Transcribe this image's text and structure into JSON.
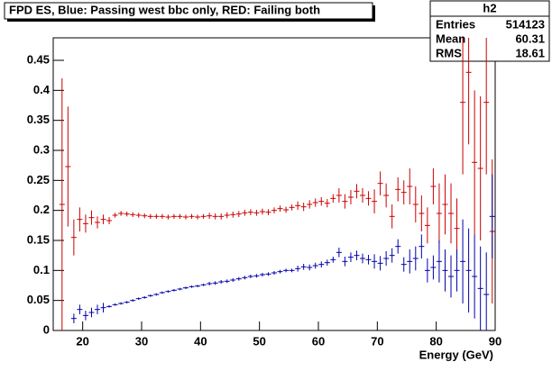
{
  "chart_data": {
    "type": "errorbar",
    "title": "FPD ES, Blue: Passing west bbc only, RED: Failing both",
    "x_label": "Energy (GeV)",
    "stats": {
      "name": "h2",
      "rows": [
        [
          "Entries",
          "514123"
        ],
        [
          "Mean",
          "60.31"
        ],
        [
          "RMS",
          "18.61"
        ]
      ]
    },
    "xlim": [
      15,
      90
    ],
    "xticks": [
      20,
      30,
      40,
      50,
      60,
      70,
      80,
      90
    ],
    "ylim": [
      0,
      0.4875
    ],
    "yticks": [
      0,
      0.05,
      0.1,
      0.15,
      0.2,
      0.25,
      0.3,
      0.35,
      0.4,
      0.45
    ],
    "series": [
      {
        "color": "#cc0000",
        "x": [
          16.5,
          17.5,
          18.5,
          19.5,
          20.5,
          21.5,
          22.5,
          23.5,
          24.5,
          25.5,
          26.5,
          27.5,
          28.5,
          29.5,
          30.5,
          31.5,
          32.5,
          33.5,
          34.5,
          35.5,
          36.5,
          37.5,
          38.5,
          39.5,
          40.5,
          41.5,
          42.5,
          43.5,
          44.5,
          45.5,
          46.5,
          47.5,
          48.5,
          49.5,
          50.5,
          51.5,
          52.5,
          53.5,
          54.5,
          55.5,
          56.5,
          57.5,
          58.5,
          59.5,
          60.5,
          61.5,
          62.5,
          63.5,
          64.5,
          65.5,
          66.5,
          67.5,
          68.5,
          69.5,
          70.5,
          71.5,
          72.5,
          73.5,
          74.5,
          75.5,
          76.5,
          77.5,
          78.5,
          79.5,
          80.5,
          81.5,
          82.5,
          83.5,
          84.5,
          85.5,
          86.5,
          87.5,
          88.5,
          89.5
        ],
        "values": [
          0.21,
          0.273,
          0.155,
          0.185,
          0.178,
          0.188,
          0.18,
          0.185,
          0.183,
          0.192,
          0.195,
          0.194,
          0.193,
          0.192,
          0.191,
          0.19,
          0.19,
          0.19,
          0.189,
          0.19,
          0.19,
          0.189,
          0.19,
          0.189,
          0.19,
          0.191,
          0.19,
          0.19,
          0.192,
          0.193,
          0.194,
          0.196,
          0.197,
          0.196,
          0.198,
          0.197,
          0.2,
          0.203,
          0.201,
          0.205,
          0.208,
          0.206,
          0.21,
          0.213,
          0.215,
          0.212,
          0.22,
          0.225,
          0.215,
          0.222,
          0.232,
          0.225,
          0.22,
          0.215,
          0.245,
          0.225,
          0.19,
          0.235,
          0.23,
          0.24,
          0.21,
          0.195,
          0.175,
          0.24,
          0.195,
          0.21,
          0.195,
          0.17,
          0.38,
          0.43,
          0.28,
          0.27,
          0.38,
          0.165
        ],
        "errors": [
          0.21,
          0.1,
          0.03,
          0.02,
          0.015,
          0.012,
          0.01,
          0.008,
          0.006,
          0.004,
          0.004,
          0.004,
          0.004,
          0.004,
          0.004,
          0.004,
          0.004,
          0.004,
          0.004,
          0.004,
          0.004,
          0.004,
          0.004,
          0.004,
          0.004,
          0.005,
          0.005,
          0.005,
          0.005,
          0.005,
          0.005,
          0.005,
          0.005,
          0.005,
          0.005,
          0.005,
          0.005,
          0.005,
          0.005,
          0.005,
          0.007,
          0.007,
          0.007,
          0.007,
          0.007,
          0.007,
          0.007,
          0.012,
          0.012,
          0.012,
          0.012,
          0.012,
          0.012,
          0.02,
          0.02,
          0.02,
          0.02,
          0.02,
          0.02,
          0.03,
          0.03,
          0.03,
          0.03,
          0.03,
          0.05,
          0.05,
          0.05,
          0.05,
          0.12,
          0.12,
          0.12,
          0.12,
          0.12,
          0.12
        ]
      },
      {
        "color": "#0000aa",
        "x": [
          18.5,
          19.5,
          20.5,
          21.5,
          22.5,
          23.5,
          24.5,
          25.5,
          26.5,
          27.5,
          28.5,
          29.5,
          30.5,
          31.5,
          32.5,
          33.5,
          34.5,
          35.5,
          36.5,
          37.5,
          38.5,
          39.5,
          40.5,
          41.5,
          42.5,
          43.5,
          44.5,
          45.5,
          46.5,
          47.5,
          48.5,
          49.5,
          50.5,
          51.5,
          52.5,
          53.5,
          54.5,
          55.5,
          56.5,
          57.5,
          58.5,
          59.5,
          60.5,
          61.5,
          62.5,
          63.5,
          64.5,
          65.5,
          66.5,
          67.5,
          68.5,
          69.5,
          70.5,
          71.5,
          72.5,
          73.5,
          74.5,
          75.5,
          76.5,
          77.5,
          78.5,
          79.5,
          80.5,
          81.5,
          82.5,
          83.5,
          84.5,
          85.5,
          86.5,
          87.5,
          88.5,
          89.5
        ],
        "values": [
          0.02,
          0.035,
          0.025,
          0.03,
          0.035,
          0.038,
          0.04,
          0.043,
          0.045,
          0.047,
          0.05,
          0.053,
          0.055,
          0.058,
          0.06,
          0.063,
          0.065,
          0.067,
          0.069,
          0.071,
          0.073,
          0.074,
          0.076,
          0.078,
          0.079,
          0.081,
          0.082,
          0.084,
          0.086,
          0.088,
          0.09,
          0.091,
          0.093,
          0.094,
          0.096,
          0.098,
          0.1,
          0.1,
          0.103,
          0.106,
          0.105,
          0.108,
          0.11,
          0.113,
          0.118,
          0.13,
          0.115,
          0.122,
          0.125,
          0.12,
          0.118,
          0.115,
          0.112,
          0.12,
          0.125,
          0.14,
          0.11,
          0.115,
          0.12,
          0.14,
          0.1,
          0.105,
          0.115,
          0.1,
          0.09,
          0.1,
          0.115,
          0.1,
          0.09,
          0.07,
          0.06,
          0.19
        ],
        "errors": [
          0.008,
          0.008,
          0.008,
          0.008,
          0.008,
          0.008,
          0.002,
          0.002,
          0.002,
          0.002,
          0.002,
          0.002,
          0.002,
          0.002,
          0.002,
          0.002,
          0.002,
          0.002,
          0.002,
          0.002,
          0.002,
          0.002,
          0.002,
          0.003,
          0.003,
          0.003,
          0.003,
          0.003,
          0.003,
          0.003,
          0.003,
          0.003,
          0.003,
          0.003,
          0.003,
          0.003,
          0.003,
          0.003,
          0.005,
          0.005,
          0.005,
          0.005,
          0.005,
          0.005,
          0.005,
          0.008,
          0.008,
          0.008,
          0.008,
          0.008,
          0.008,
          0.012,
          0.012,
          0.012,
          0.012,
          0.012,
          0.012,
          0.02,
          0.02,
          0.02,
          0.02,
          0.02,
          0.035,
          0.035,
          0.035,
          0.035,
          0.07,
          0.07,
          0.07,
          0.07,
          0.07,
          0.07
        ]
      }
    ]
  }
}
